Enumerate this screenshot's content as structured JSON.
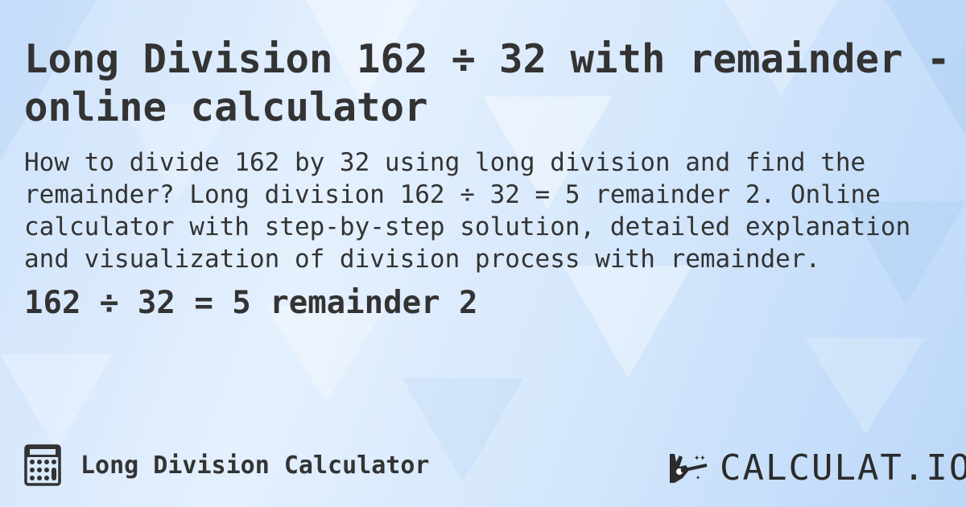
{
  "header": {
    "title": "Long Division 162 ÷ 32 with remainder - online calculator"
  },
  "description": "How to divide 162 by 32 using long division and find the remainder? Long division 162 ÷ 32 = 5 remainder 2. Online calculator with step-by-step solution, detailed explanation and visualization of division process with remainder.",
  "result": "162 ÷ 32 = 5 remainder 2",
  "footer": {
    "icon": "calculator-icon",
    "label": "Long Division Calculator",
    "logo_text": "CALCULAT.IO",
    "logo_icon": "magic-wand-hand-icon"
  },
  "colors": {
    "text": "#333333",
    "background": "#d6e8fc"
  }
}
